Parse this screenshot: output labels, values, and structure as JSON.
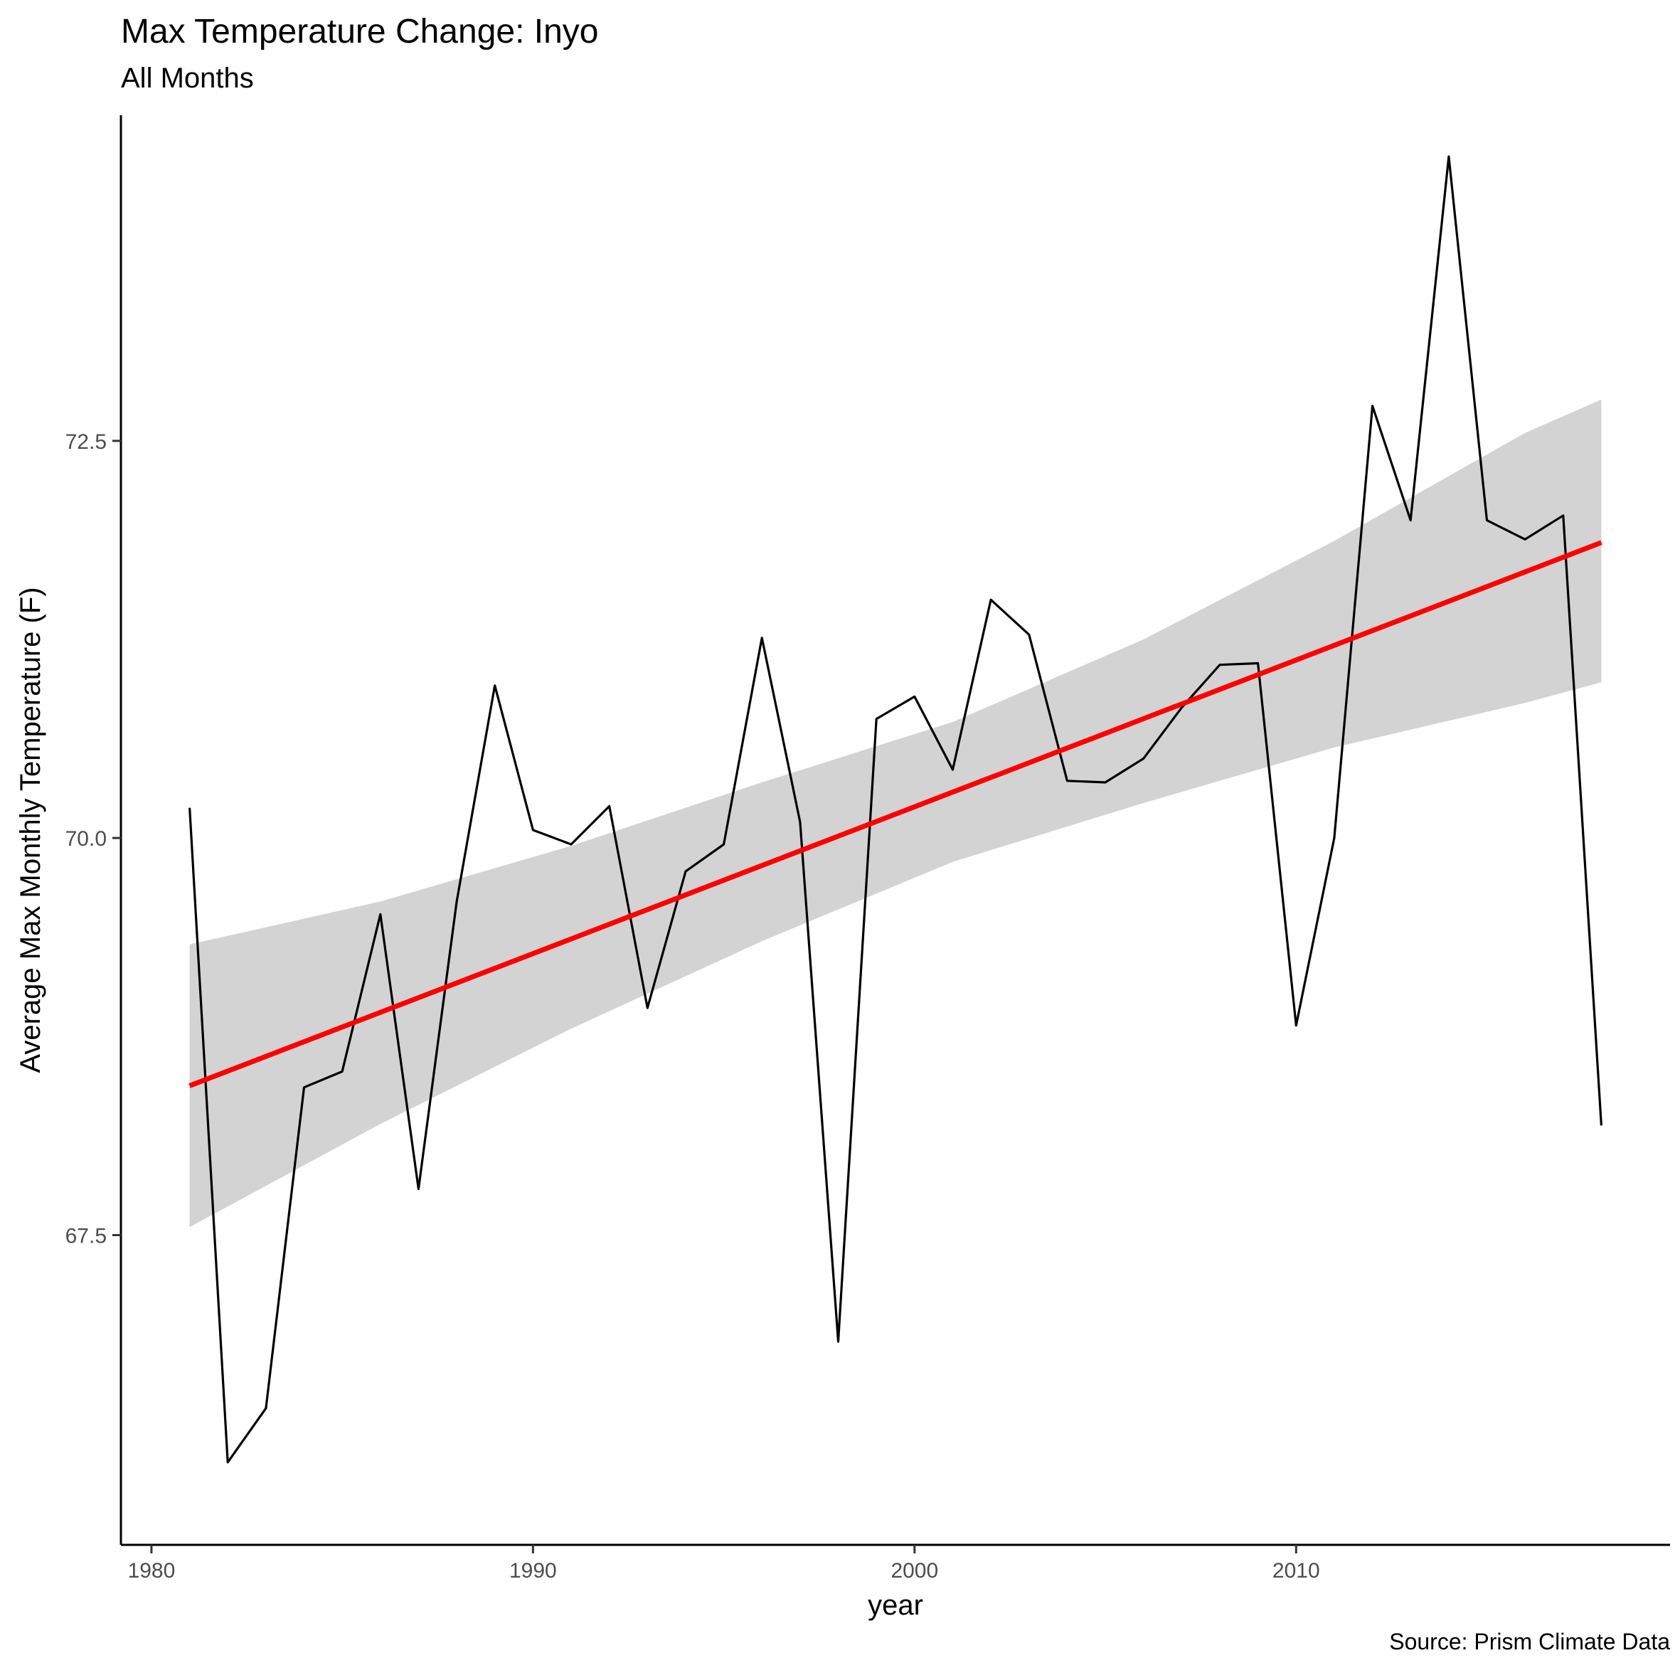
{
  "chart_data": {
    "type": "line",
    "title": "Max Temperature Change: Inyo",
    "subtitle": "All Months",
    "caption": "Source: Prism Climate Data",
    "xlabel": "year",
    "ylabel": "Average Max Monthly Temperature (F)",
    "xlim": [
      1979.2,
      2019.8
    ],
    "ylim": [
      65.55,
      74.55
    ],
    "x_ticks": [
      1980,
      1990,
      2000,
      2010
    ],
    "x_tick_labels": [
      "1980",
      "1990",
      "2000",
      "2010"
    ],
    "y_ticks": [
      67.5,
      70.0,
      72.5
    ],
    "y_tick_labels": [
      "67.5",
      "70.0",
      "72.5"
    ],
    "grid": false,
    "colors": {
      "line": "#000000",
      "trend": "#ff0000",
      "band": "#d3d3d3"
    },
    "series": [
      {
        "x": [
          1981,
          1982,
          1983,
          1984,
          1985,
          1986,
          1987,
          1988,
          1989,
          1990,
          1991,
          1992,
          1993,
          1994,
          1995,
          1996,
          1997,
          1998,
          1999,
          2000,
          2001,
          2002,
          2003,
          2004,
          2005,
          2006,
          2007,
          2008,
          2009,
          2010,
          2011,
          2012,
          2013,
          2014,
          2015,
          2016,
          2017,
          2018
        ],
        "values": [
          70.19,
          66.07,
          66.41,
          68.43,
          68.53,
          69.52,
          67.79,
          69.6,
          70.96,
          70.05,
          69.96,
          70.2,
          68.93,
          69.79,
          69.96,
          71.26,
          70.1,
          66.83,
          70.75,
          70.89,
          70.43,
          71.5,
          71.28,
          70.36,
          70.35,
          70.5,
          70.82,
          71.09,
          71.1,
          68.82,
          70.0,
          72.72,
          72.0,
          74.29,
          72.0,
          71.88,
          72.03,
          68.19
        ]
      }
    ],
    "trend": {
      "x": [
        1981,
        2018
      ],
      "values": [
        68.44,
        71.86
      ]
    },
    "confidence_band": {
      "x": [
        1981,
        1986,
        1991,
        1996,
        2001,
        2006,
        2011,
        2016,
        2018
      ],
      "lower": [
        67.55,
        68.2,
        68.8,
        69.35,
        69.85,
        70.22,
        70.57,
        70.85,
        70.98
      ],
      "upper": [
        69.33,
        69.6,
        69.95,
        70.35,
        70.73,
        71.25,
        71.87,
        72.55,
        72.76
      ]
    }
  }
}
